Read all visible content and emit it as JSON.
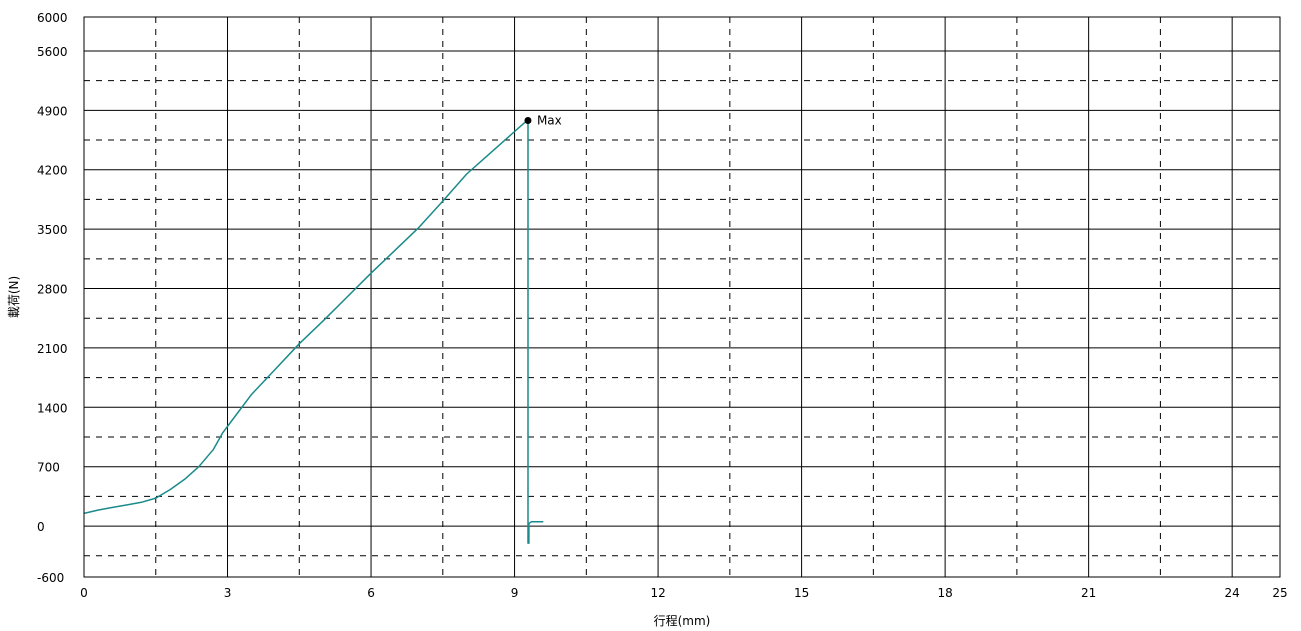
{
  "chart_data": {
    "type": "line",
    "xlabel": "行程(mm)",
    "ylabel": "載荷(N)",
    "xlim": [
      0,
      25
    ],
    "ylim": [
      -600,
      6000
    ],
    "x_ticks": [
      "0",
      "3",
      "6",
      "9",
      "12",
      "15",
      "18",
      "21",
      "24",
      "25"
    ],
    "x_tick_values": [
      0,
      3,
      6,
      9,
      12,
      15,
      18,
      21,
      24,
      25
    ],
    "y_ticks": [
      "6000",
      "5600",
      "4900",
      "4200",
      "3500",
      "2800",
      "2100",
      "1400",
      "700",
      "0",
      "-600"
    ],
    "y_tick_values": [
      6000,
      5600,
      4900,
      4200,
      3500,
      2800,
      2100,
      1400,
      700,
      0,
      -600
    ],
    "x_major_grid": [
      3,
      6,
      9,
      12,
      15,
      18,
      21,
      24
    ],
    "x_minor_grid": [
      1.5,
      4.5,
      7.5,
      10.5,
      13.5,
      16.5,
      19.5,
      22.5
    ],
    "y_major_grid": [
      0,
      700,
      1400,
      2100,
      2800,
      3500,
      4200,
      4900,
      5600
    ],
    "y_minor_grid": [
      -350,
      350,
      1050,
      1750,
      2450,
      3150,
      3850,
      4550,
      5250
    ],
    "grid": true,
    "series": [
      {
        "color": "#1a8a8a",
        "x": [
          0,
          0.3,
          0.6,
          0.9,
          1.2,
          1.5,
          1.8,
          2.1,
          2.4,
          2.7,
          2.9,
          3.1,
          3.5,
          4.0,
          4.5,
          5.0,
          5.5,
          6.0,
          6.5,
          7.0,
          7.5,
          8.0,
          8.5,
          9.0,
          9.2,
          9.28,
          9.28,
          9.28,
          9.3,
          9.3,
          9.35,
          9.5,
          9.6
        ],
        "y": [
          150,
          190,
          220,
          250,
          280,
          330,
          430,
          550,
          700,
          900,
          1100,
          1250,
          1550,
          1850,
          2150,
          2420,
          2700,
          2980,
          3250,
          3520,
          3830,
          4150,
          4400,
          4650,
          4750,
          4780,
          2000,
          -200,
          -200,
          30,
          50,
          50,
          50
        ]
      }
    ],
    "annotations": [
      {
        "text": "Max",
        "x": 9.28,
        "y": 4780,
        "color": "#000000"
      }
    ]
  }
}
